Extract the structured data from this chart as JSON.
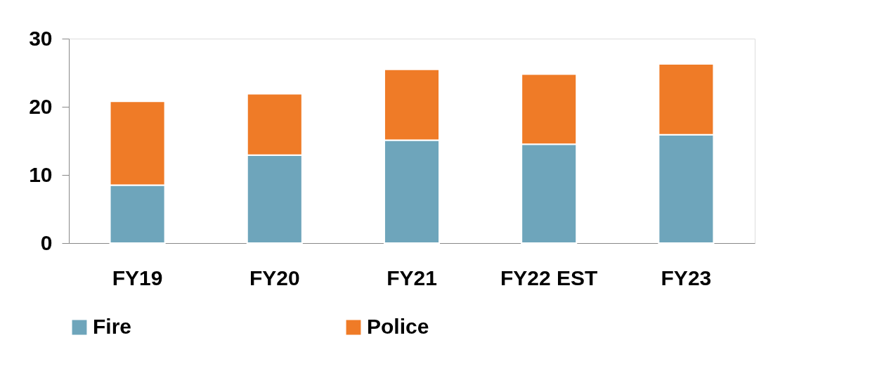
{
  "chart_data": {
    "type": "bar",
    "stacked": true,
    "categories": [
      "FY19",
      "FY20",
      "FY21",
      "FY22 EST",
      "FY23"
    ],
    "series": [
      {
        "name": "Fire",
        "color": "#6ea5bb",
        "values": [
          8.5,
          12.9,
          15.1,
          14.5,
          15.9
        ]
      },
      {
        "name": "Police",
        "color": "#ef7b27",
        "values": [
          12.3,
          9.0,
          10.4,
          10.3,
          10.4
        ]
      }
    ],
    "ylim": [
      0,
      30
    ],
    "yticks": [
      0,
      10,
      20,
      30
    ],
    "grid": false,
    "legend": "bottom"
  }
}
